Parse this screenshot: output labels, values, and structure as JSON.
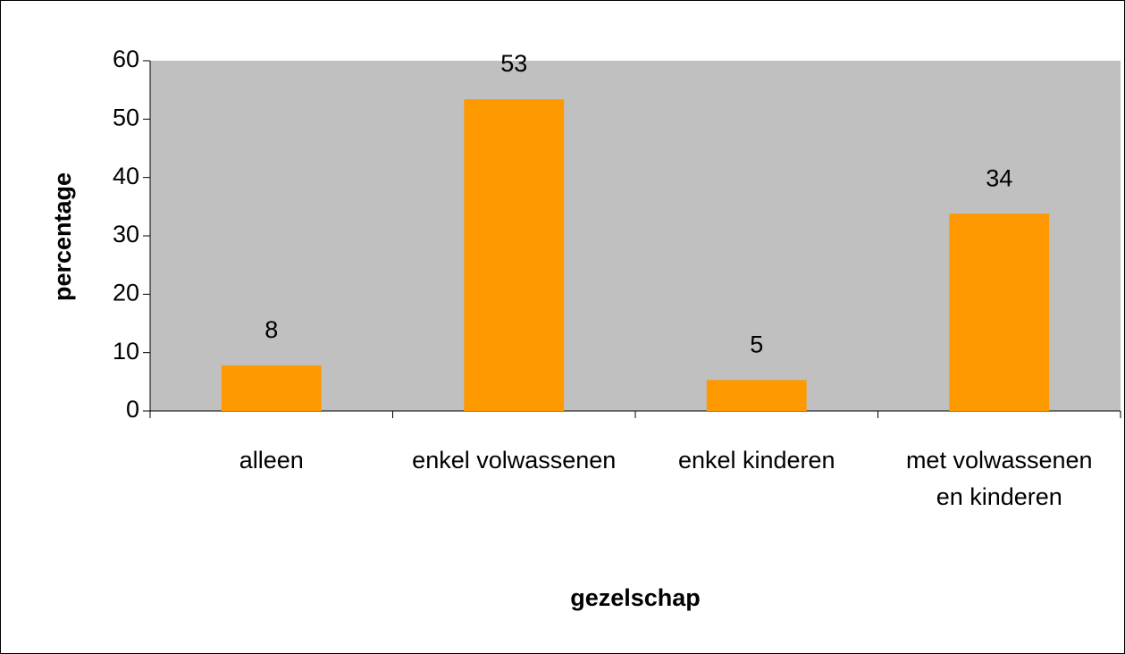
{
  "chart_data": {
    "type": "bar",
    "x_label": "gezelschap",
    "y_label": "percentage",
    "categories": [
      "alleen",
      "enkel volwassenen",
      "enkel kinderen",
      "met volwassenen en kinderen"
    ],
    "values": [
      7.8,
      53.4,
      5.3,
      33.8
    ],
    "value_labels": [
      "8",
      "53",
      "5",
      "34"
    ],
    "color": "#ff9900",
    "plot_background": "#c0c0c0",
    "ylim": [
      0,
      60
    ],
    "yticks": [
      0,
      10,
      20,
      30,
      40,
      50,
      60
    ],
    "grid": false
  }
}
